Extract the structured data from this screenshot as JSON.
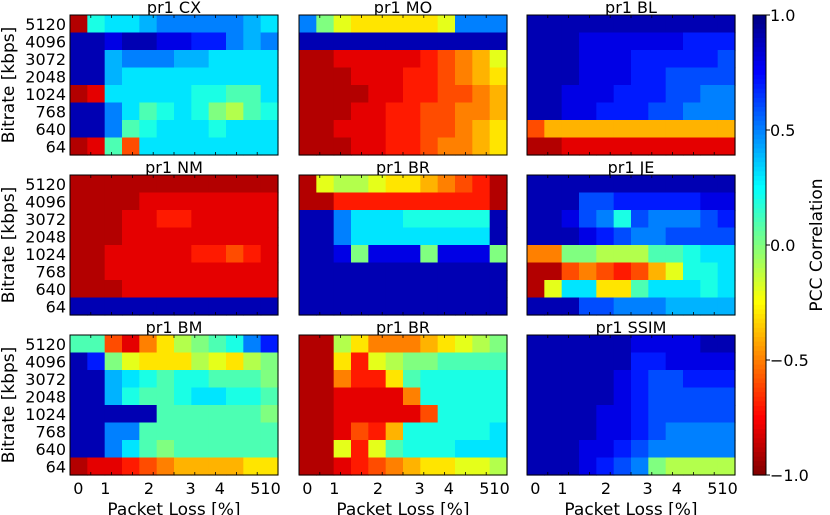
{
  "chart_data": [
    {
      "type": "heatmap",
      "title": "pr1 CX",
      "x_ticks": [
        "0",
        "1",
        "2",
        "3",
        "4",
        "510"
      ],
      "y_ticks": [
        "5120",
        "4096",
        "3072",
        "2048",
        "1024",
        "768",
        "640",
        "64"
      ],
      "xlabel": "Packet Loss [%]",
      "ylabel": "Bitrate [kbps]",
      "values": [
        [
          -0.9,
          0.2,
          0.3,
          0.3,
          0.4,
          0.5,
          0.5,
          0.5,
          0.5,
          0.5,
          0.4,
          0.3
        ],
        [
          0.9,
          0.9,
          0.8,
          0.9,
          0.9,
          0.8,
          0.8,
          0.7,
          0.7,
          0.5,
          0.4,
          0.5
        ],
        [
          0.9,
          0.9,
          0.4,
          0.5,
          0.5,
          0.5,
          0.4,
          0.4,
          0.3,
          0.3,
          0.3,
          0.3
        ],
        [
          0.9,
          0.9,
          0.4,
          0.3,
          0.3,
          0.3,
          0.3,
          0.3,
          0.3,
          0.3,
          0.3,
          0.3
        ],
        [
          -0.9,
          -0.8,
          0.3,
          0.3,
          0.3,
          0.3,
          0.3,
          0.2,
          0.2,
          0.1,
          0.1,
          0.3
        ],
        [
          0.9,
          0.9,
          0.5,
          0.3,
          0.1,
          0.2,
          0.3,
          0.2,
          0.0,
          -0.1,
          0.1,
          0.2
        ],
        [
          0.9,
          0.9,
          0.5,
          0.1,
          0.2,
          0.3,
          0.3,
          0.3,
          0.2,
          0.3,
          0.3,
          0.3
        ],
        [
          -0.9,
          -0.8,
          0.1,
          -0.6,
          0.3,
          0.3,
          0.3,
          0.3,
          0.3,
          0.3,
          0.3,
          0.3
        ]
      ]
    },
    {
      "type": "heatmap",
      "title": "pr1 MO",
      "x_ticks": [
        "0",
        "1",
        "2",
        "3",
        "4",
        "510"
      ],
      "y_ticks": [
        "5120",
        "4096",
        "3072",
        "2048",
        "1024",
        "768",
        "640",
        "64"
      ],
      "xlabel": "Packet Loss [%]",
      "ylabel": "",
      "values": [
        [
          0.5,
          0.0,
          -0.2,
          -0.3,
          -0.3,
          -0.3,
          -0.3,
          -0.3,
          -0.2,
          0.5,
          0.5,
          0.5
        ],
        [
          0.9,
          0.9,
          0.9,
          0.9,
          0.9,
          0.9,
          0.9,
          0.9,
          0.9,
          0.9,
          0.9,
          0.9
        ],
        [
          -0.9,
          -0.9,
          -0.8,
          -0.8,
          -0.8,
          -0.8,
          -0.8,
          -0.7,
          -0.6,
          -0.5,
          -0.4,
          -0.2
        ],
        [
          -0.9,
          -0.9,
          -0.9,
          -0.8,
          -0.8,
          -0.8,
          -0.7,
          -0.7,
          -0.6,
          -0.5,
          -0.4,
          -0.3
        ],
        [
          -0.9,
          -0.9,
          -0.9,
          -0.9,
          -0.8,
          -0.8,
          -0.7,
          -0.7,
          -0.6,
          -0.6,
          -0.5,
          -0.4
        ],
        [
          -0.9,
          -0.9,
          -0.9,
          -0.8,
          -0.8,
          -0.7,
          -0.7,
          -0.6,
          -0.6,
          -0.5,
          -0.5,
          -0.4
        ],
        [
          -0.9,
          -0.9,
          -0.8,
          -0.8,
          -0.8,
          -0.7,
          -0.7,
          -0.6,
          -0.6,
          -0.5,
          -0.4,
          -0.3
        ],
        [
          -0.9,
          -0.9,
          -0.9,
          -0.8,
          -0.8,
          -0.7,
          -0.7,
          -0.6,
          -0.5,
          -0.5,
          -0.4,
          -0.3
        ]
      ]
    },
    {
      "type": "heatmap",
      "title": "pr1 BL",
      "x_ticks": [
        "0",
        "1",
        "2",
        "3",
        "4",
        "510"
      ],
      "y_ticks": [
        "5120",
        "4096",
        "3072",
        "2048",
        "1024",
        "768",
        "640",
        "64"
      ],
      "xlabel": "Packet Loss [%]",
      "ylabel": "",
      "values": [
        [
          0.9,
          0.9,
          0.9,
          0.9,
          0.9,
          0.9,
          0.9,
          0.9,
          0.9,
          0.9,
          0.9,
          0.9
        ],
        [
          0.9,
          0.9,
          0.9,
          0.8,
          0.8,
          0.8,
          0.8,
          0.8,
          0.8,
          0.7,
          0.7,
          0.7
        ],
        [
          0.9,
          0.9,
          0.9,
          0.8,
          0.8,
          0.8,
          0.7,
          0.7,
          0.7,
          0.7,
          0.7,
          0.6
        ],
        [
          0.9,
          0.9,
          0.9,
          0.8,
          0.8,
          0.8,
          0.7,
          0.7,
          0.6,
          0.6,
          0.6,
          0.6
        ],
        [
          0.9,
          0.9,
          0.8,
          0.8,
          0.8,
          0.7,
          0.7,
          0.7,
          0.6,
          0.6,
          0.5,
          0.5
        ],
        [
          0.9,
          0.9,
          0.8,
          0.8,
          0.7,
          0.7,
          0.7,
          0.6,
          0.6,
          0.5,
          0.5,
          0.5
        ],
        [
          -0.6,
          -0.4,
          -0.4,
          -0.4,
          -0.4,
          -0.4,
          -0.4,
          -0.4,
          -0.4,
          -0.4,
          -0.4,
          -0.4
        ],
        [
          -0.9,
          -0.9,
          -0.8,
          -0.8,
          -0.8,
          -0.8,
          -0.8,
          -0.8,
          -0.8,
          -0.8,
          -0.8,
          -0.8
        ]
      ]
    },
    {
      "type": "heatmap",
      "title": "pr1 NM",
      "x_ticks": [
        "0",
        "1",
        "2",
        "3",
        "4",
        "510"
      ],
      "y_ticks": [
        "5120",
        "4096",
        "3072",
        "2048",
        "1024",
        "768",
        "640",
        "64"
      ],
      "xlabel": "Packet Loss [%]",
      "ylabel": "Bitrate [kbps]",
      "values": [
        [
          -0.9,
          -0.9,
          -0.9,
          -0.9,
          -0.9,
          -0.9,
          -0.9,
          -0.9,
          -0.9,
          -0.9,
          -0.9,
          -0.9
        ],
        [
          -0.9,
          -0.9,
          -0.9,
          -0.9,
          -0.8,
          -0.8,
          -0.8,
          -0.8,
          -0.8,
          -0.8,
          -0.8,
          -0.8
        ],
        [
          -0.9,
          -0.9,
          -0.9,
          -0.8,
          -0.8,
          -0.7,
          -0.7,
          -0.8,
          -0.8,
          -0.8,
          -0.8,
          -0.8
        ],
        [
          -0.9,
          -0.9,
          -0.9,
          -0.8,
          -0.8,
          -0.8,
          -0.8,
          -0.8,
          -0.8,
          -0.8,
          -0.8,
          -0.8
        ],
        [
          -0.9,
          -0.9,
          -0.8,
          -0.8,
          -0.8,
          -0.8,
          -0.8,
          -0.7,
          -0.7,
          -0.6,
          -0.7,
          -0.8
        ],
        [
          -0.9,
          -0.9,
          -0.8,
          -0.8,
          -0.8,
          -0.8,
          -0.8,
          -0.8,
          -0.8,
          -0.8,
          -0.8,
          -0.8
        ],
        [
          -0.9,
          -0.9,
          -0.9,
          -0.8,
          -0.8,
          -0.8,
          -0.8,
          -0.8,
          -0.8,
          -0.8,
          -0.8,
          -0.8
        ],
        [
          0.9,
          0.9,
          0.9,
          0.9,
          0.9,
          0.9,
          0.9,
          0.9,
          0.9,
          0.9,
          0.9,
          0.9
        ]
      ]
    },
    {
      "type": "heatmap",
      "title": "pr1 BR",
      "x_ticks": [
        "0",
        "1",
        "2",
        "3",
        "4",
        "510"
      ],
      "y_ticks": [
        "5120",
        "4096",
        "3072",
        "2048",
        "1024",
        "768",
        "640",
        "64"
      ],
      "xlabel": "Packet Loss [%]",
      "ylabel": "",
      "values": [
        [
          -0.9,
          -0.2,
          -0.1,
          -0.1,
          -0.2,
          -0.3,
          -0.3,
          -0.4,
          -0.5,
          -0.6,
          -0.7,
          -0.9
        ],
        [
          -0.9,
          -0.9,
          -0.7,
          -0.7,
          -0.7,
          -0.7,
          -0.7,
          -0.7,
          -0.7,
          -0.7,
          -0.7,
          -0.9
        ],
        [
          0.9,
          0.9,
          0.5,
          0.3,
          0.3,
          0.3,
          0.2,
          0.2,
          0.2,
          0.2,
          0.2,
          0.9
        ],
        [
          0.9,
          0.9,
          0.5,
          0.3,
          0.3,
          0.3,
          0.3,
          0.3,
          0.3,
          0.3,
          0.3,
          0.9
        ],
        [
          0.9,
          0.9,
          0.8,
          0.0,
          0.8,
          0.8,
          0.8,
          0.0,
          0.8,
          0.8,
          0.8,
          0.0
        ],
        [
          0.9,
          0.9,
          0.9,
          0.9,
          0.9,
          0.9,
          0.9,
          0.9,
          0.9,
          0.9,
          0.9,
          0.9
        ],
        [
          0.9,
          0.9,
          0.9,
          0.9,
          0.9,
          0.9,
          0.9,
          0.9,
          0.9,
          0.9,
          0.9,
          0.9
        ],
        [
          0.9,
          0.9,
          0.9,
          0.9,
          0.9,
          0.9,
          0.9,
          0.9,
          0.9,
          0.9,
          0.9,
          0.9
        ]
      ]
    },
    {
      "type": "heatmap",
      "title": "pr1 JE",
      "x_ticks": [
        "0",
        "1",
        "2",
        "3",
        "4",
        "510"
      ],
      "y_ticks": [
        "5120",
        "4096",
        "3072",
        "2048",
        "1024",
        "768",
        "640",
        "64"
      ],
      "xlabel": "Packet Loss [%]",
      "ylabel": "",
      "values": [
        [
          0.9,
          0.9,
          0.9,
          0.9,
          0.9,
          0.9,
          0.9,
          0.9,
          0.9,
          0.9,
          0.9,
          0.9
        ],
        [
          0.9,
          0.9,
          0.9,
          0.6,
          0.6,
          0.7,
          0.7,
          0.7,
          0.7,
          0.7,
          0.8,
          0.8
        ],
        [
          0.9,
          0.9,
          0.8,
          0.6,
          0.5,
          0.2,
          0.6,
          0.5,
          0.5,
          0.5,
          0.6,
          0.7
        ],
        [
          0.9,
          0.9,
          0.9,
          0.8,
          0.7,
          0.6,
          0.5,
          0.5,
          0.6,
          0.6,
          0.6,
          0.6
        ],
        [
          -0.5,
          -0.5,
          0.0,
          0.0,
          -0.1,
          -0.1,
          -0.1,
          0.1,
          0.1,
          0.2,
          0.3,
          0.3
        ],
        [
          -0.9,
          -0.9,
          -0.6,
          -0.5,
          -0.6,
          -0.7,
          -0.6,
          -0.4,
          -0.2,
          0.2,
          0.2,
          0.3
        ],
        [
          -0.9,
          -0.2,
          0.3,
          0.3,
          -0.3,
          -0.3,
          0.1,
          0.3,
          0.3,
          0.3,
          0.2,
          0.3
        ],
        [
          0.9,
          0.9,
          0.9,
          0.6,
          0.6,
          0.5,
          0.5,
          0.5,
          0.4,
          0.4,
          0.4,
          0.4
        ]
      ]
    },
    {
      "type": "heatmap",
      "title": "pr1 BM",
      "x_ticks": [
        "0",
        "1",
        "2",
        "3",
        "4",
        "510"
      ],
      "y_ticks": [
        "5120",
        "4096",
        "3072",
        "2048",
        "1024",
        "768",
        "640",
        "64"
      ],
      "xlabel": "Packet Loss [%]",
      "ylabel": "Bitrate [kbps]",
      "values": [
        [
          0.1,
          0.1,
          -0.6,
          -0.8,
          -0.5,
          -0.3,
          -0.1,
          0.0,
          0.1,
          0.2,
          0.5,
          0.7
        ],
        [
          0.9,
          0.7,
          0.0,
          -0.2,
          -0.3,
          -0.3,
          -0.3,
          -0.1,
          -0.2,
          -0.3,
          -0.1,
          0.0
        ],
        [
          0.9,
          0.9,
          0.4,
          0.3,
          0.2,
          0.1,
          0.2,
          0.2,
          0.1,
          0.1,
          0.1,
          0.0
        ],
        [
          0.9,
          0.9,
          0.4,
          0.2,
          0.1,
          0.1,
          0.2,
          0.3,
          0.3,
          0.2,
          0.2,
          0.1
        ],
        [
          0.9,
          0.9,
          0.9,
          0.9,
          0.9,
          0.1,
          0.1,
          0.1,
          0.1,
          0.1,
          0.1,
          0.0
        ],
        [
          0.9,
          0.9,
          0.5,
          0.5,
          0.1,
          0.1,
          0.1,
          0.1,
          0.1,
          0.1,
          0.1,
          0.1
        ],
        [
          0.9,
          0.9,
          0.5,
          0.3,
          0.1,
          0.0,
          0.1,
          0.1,
          0.1,
          0.1,
          0.1,
          0.1
        ],
        [
          -0.9,
          -0.8,
          -0.8,
          -0.7,
          -0.6,
          -0.5,
          -0.4,
          -0.4,
          -0.4,
          -0.4,
          -0.3,
          -0.3
        ]
      ]
    },
    {
      "type": "heatmap",
      "title": "pr1 BR",
      "x_ticks": [
        "0",
        "1",
        "2",
        "3",
        "4",
        "510"
      ],
      "y_ticks": [
        "5120",
        "4096",
        "3072",
        "2048",
        "1024",
        "768",
        "640",
        "64"
      ],
      "xlabel": "Packet Loss [%]",
      "ylabel": "",
      "values": [
        [
          -0.9,
          -0.9,
          -0.1,
          -0.3,
          -0.5,
          -0.5,
          -0.5,
          -0.4,
          -0.3,
          -0.2,
          -0.1,
          0.0
        ],
        [
          -0.9,
          -0.9,
          -0.3,
          -0.7,
          -0.2,
          -0.1,
          0.0,
          0.0,
          0.1,
          0.1,
          0.1,
          0.1
        ],
        [
          -0.9,
          -0.9,
          -0.5,
          -0.7,
          -0.7,
          -0.3,
          0.1,
          0.2,
          0.2,
          0.2,
          0.2,
          0.2
        ],
        [
          -0.9,
          -0.9,
          -0.8,
          -0.8,
          -0.8,
          -0.8,
          -0.5,
          0.2,
          0.2,
          0.2,
          0.2,
          0.2
        ],
        [
          -0.9,
          -0.9,
          -0.8,
          -0.8,
          -0.8,
          -0.8,
          -0.8,
          -0.6,
          0.2,
          0.2,
          0.2,
          0.2
        ],
        [
          -0.9,
          -0.9,
          -0.8,
          -0.6,
          -0.7,
          -0.4,
          0.2,
          0.2,
          0.2,
          0.2,
          0.2,
          0.3
        ],
        [
          -0.9,
          -0.9,
          -0.2,
          -0.7,
          -0.2,
          0.1,
          0.2,
          0.2,
          0.2,
          0.3,
          0.3,
          0.3
        ],
        [
          -0.9,
          -0.9,
          -0.8,
          -0.7,
          -0.6,
          -0.5,
          -0.4,
          -0.3,
          -0.3,
          -0.2,
          -0.2,
          -0.1
        ]
      ]
    },
    {
      "type": "heatmap",
      "title": "pr1 SSIM",
      "x_ticks": [
        "0",
        "1",
        "2",
        "3",
        "4",
        "510"
      ],
      "y_ticks": [
        "5120",
        "4096",
        "3072",
        "2048",
        "1024",
        "768",
        "640",
        "64"
      ],
      "xlabel": "Packet Loss [%]",
      "ylabel": "",
      "values": [
        [
          0.9,
          0.9,
          0.9,
          0.9,
          0.9,
          0.9,
          0.8,
          0.8,
          0.8,
          0.8,
          0.9,
          0.9
        ],
        [
          0.9,
          0.9,
          0.9,
          0.9,
          0.9,
          0.9,
          0.7,
          0.7,
          0.8,
          0.8,
          0.8,
          0.8
        ],
        [
          0.9,
          0.9,
          0.9,
          0.9,
          0.9,
          0.8,
          0.7,
          0.6,
          0.6,
          0.7,
          0.7,
          0.7
        ],
        [
          0.9,
          0.9,
          0.9,
          0.9,
          0.9,
          0.8,
          0.7,
          0.6,
          0.6,
          0.6,
          0.6,
          0.6
        ],
        [
          0.9,
          0.9,
          0.9,
          0.9,
          0.8,
          0.8,
          0.7,
          0.6,
          0.6,
          0.6,
          0.6,
          0.6
        ],
        [
          0.9,
          0.9,
          0.9,
          0.9,
          0.8,
          0.8,
          0.7,
          0.6,
          0.5,
          0.5,
          0.5,
          0.5
        ],
        [
          0.9,
          0.9,
          0.9,
          0.8,
          0.8,
          0.7,
          0.6,
          0.5,
          0.5,
          0.5,
          0.5,
          0.5
        ],
        [
          0.9,
          0.9,
          0.9,
          0.8,
          0.7,
          0.6,
          0.5,
          0.0,
          -0.1,
          -0.1,
          -0.1,
          -0.1
        ]
      ]
    }
  ],
  "colorbar": {
    "label": "PCC Correlation",
    "ticks": [
      "1.0",
      "0.5",
      "0.0",
      "−0.5",
      "−1.0"
    ],
    "tick_values": [
      1.0,
      0.5,
      0.0,
      -0.5,
      -1.0
    ],
    "range": [
      -1.0,
      1.0
    ],
    "colormap": "jet"
  }
}
